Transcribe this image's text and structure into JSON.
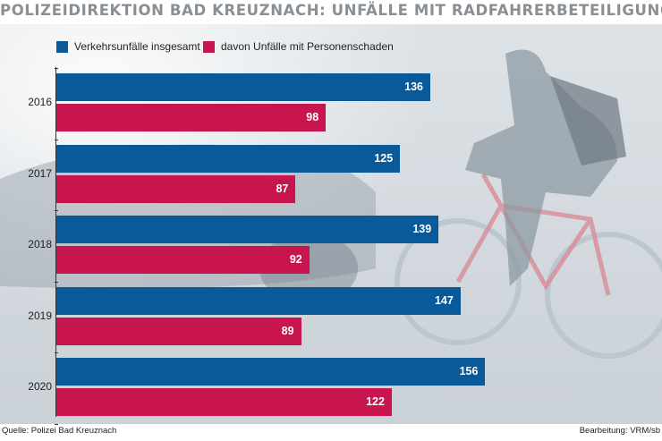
{
  "title": "POLIZEIDIREKTION BAD KREUZNACH: UNFÄLLE MIT RADFAHRERBETEILIGUNG",
  "legend": [
    {
      "label": "Verkehrsunfälle insgesamt",
      "color": "#0a5a9a"
    },
    {
      "label": "davon Unfälle mit Personenschaden",
      "color": "#c8154d"
    }
  ],
  "chart_data": {
    "type": "bar",
    "orientation": "horizontal",
    "title": "POLIZEIDIREKTION BAD KREUZNACH: UNFÄLLE MIT RADFAHRERBETEILIGUNG",
    "categories": [
      "2016",
      "2017",
      "2018",
      "2019",
      "2020"
    ],
    "series": [
      {
        "name": "Verkehrsunfälle insgesamt",
        "color": "#0a5a9a",
        "values": [
          136,
          125,
          139,
          147,
          156
        ]
      },
      {
        "name": "davon Unfälle mit Personenschaden",
        "color": "#c8154d",
        "values": [
          98,
          87,
          92,
          89,
          122
        ]
      }
    ],
    "xlim": [
      0,
      220
    ],
    "grid": false,
    "legend_position": "top-left"
  },
  "footer": {
    "source": "Quelle: Polizei Bad Kreuznach",
    "credit": "Bearbeitung: VRM/sb"
  }
}
